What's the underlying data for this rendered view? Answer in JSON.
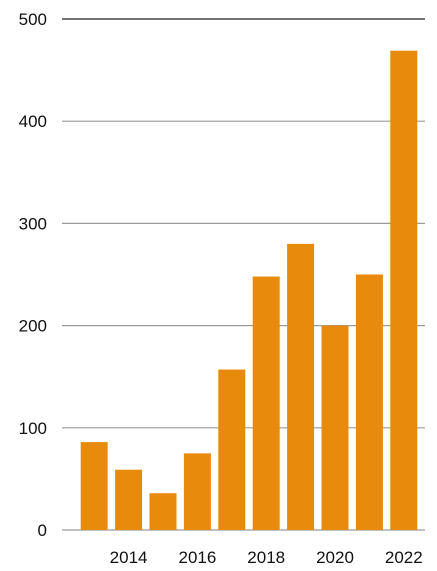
{
  "chart_data": {
    "type": "bar",
    "categories": [
      "2013",
      "2014",
      "2015",
      "2016",
      "2017",
      "2018",
      "2019",
      "2020",
      "2021",
      "2022"
    ],
    "values": [
      86,
      59,
      36,
      75,
      157,
      248,
      280,
      200,
      250,
      469
    ],
    "x_tick_labels": [
      "2014",
      "2016",
      "2018",
      "2020",
      "2022"
    ],
    "y_ticks": [
      0,
      100,
      200,
      300,
      400,
      500
    ],
    "ylim": [
      0,
      500
    ],
    "title": "",
    "xlabel": "",
    "ylabel": "",
    "grid": true,
    "legend": "none",
    "bar_color": "#e88a0c"
  }
}
